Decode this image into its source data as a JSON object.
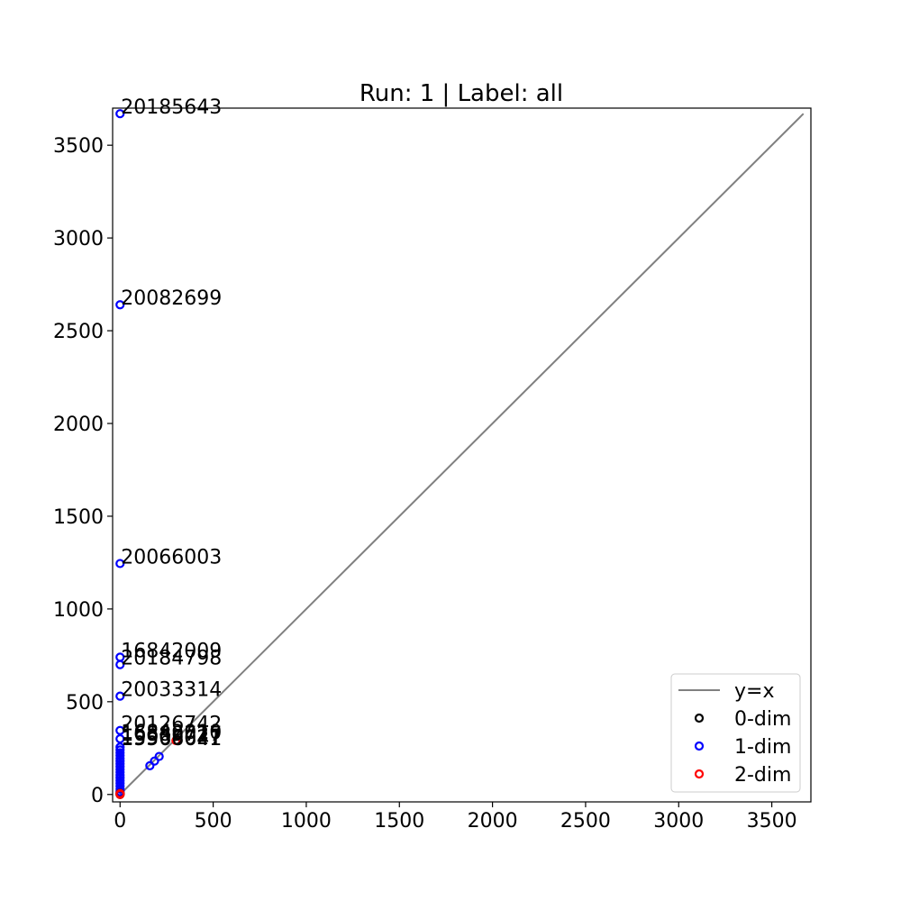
{
  "chart_data": {
    "type": "scatter",
    "title": "Run: 1 | Label: all",
    "xlabel": "",
    "ylabel": "",
    "xlim": [
      -40,
      3710
    ],
    "ylim": [
      -40,
      3700
    ],
    "xticks": [
      0,
      500,
      1000,
      1500,
      2000,
      2500,
      3000,
      3500
    ],
    "yticks": [
      0,
      500,
      1000,
      1500,
      2000,
      2500,
      3000,
      3500
    ],
    "grid": false,
    "legend": {
      "placement": "lower-right",
      "entries": [
        {
          "label": "y=x",
          "kind": "line",
          "color": "#808080"
        },
        {
          "label": "0-dim",
          "kind": "marker",
          "color": "#000000"
        },
        {
          "label": "1-dim",
          "kind": "marker",
          "color": "#0000ff"
        },
        {
          "label": "2-dim",
          "kind": "marker",
          "color": "#ff0000"
        }
      ]
    },
    "diagonal": {
      "label": "y=x",
      "color": "#808080",
      "from": 0,
      "to": 3670
    },
    "series": [
      {
        "name": "0-dim",
        "color": "#000000",
        "points": [
          [
            0,
            0
          ],
          [
            0,
            3
          ],
          [
            0,
            6
          ]
        ]
      },
      {
        "name": "1-dim",
        "color": "#0000ff",
        "points": [
          [
            0,
            3670
          ],
          [
            0,
            2640
          ],
          [
            0,
            1245
          ],
          [
            0,
            740
          ],
          [
            0,
            700
          ],
          [
            0,
            530
          ],
          [
            0,
            345
          ],
          [
            0,
            300
          ],
          [
            0,
            255
          ],
          [
            0,
            240
          ],
          [
            0,
            225
          ],
          [
            0,
            210
          ],
          [
            0,
            195
          ],
          [
            0,
            180
          ],
          [
            0,
            165
          ],
          [
            0,
            150
          ],
          [
            0,
            135
          ],
          [
            0,
            120
          ],
          [
            0,
            105
          ],
          [
            0,
            90
          ],
          [
            0,
            75
          ],
          [
            0,
            60
          ],
          [
            0,
            45
          ],
          [
            0,
            30
          ],
          [
            0,
            15
          ],
          [
            160,
            155
          ],
          [
            185,
            180
          ],
          [
            210,
            205
          ]
        ]
      },
      {
        "name": "2-dim",
        "color": "#ff0000",
        "points": [
          [
            0,
            0
          ],
          [
            0,
            5
          ],
          [
            300,
            290
          ]
        ]
      }
    ],
    "annotations": [
      {
        "text": "20185643",
        "x": 0,
        "y": 3670
      },
      {
        "text": "20082699",
        "x": 0,
        "y": 2640
      },
      {
        "text": "20066003",
        "x": 0,
        "y": 1245
      },
      {
        "text": "16842009",
        "x": 0,
        "y": 740
      },
      {
        "text": "20184798",
        "x": 0,
        "y": 700
      },
      {
        "text": "20033314",
        "x": 0,
        "y": 530
      },
      {
        "text": "20126742",
        "x": 0,
        "y": 345
      },
      {
        "text": "16842010",
        "x": 0,
        "y": 300
      },
      {
        "text": "16889727",
        "x": 0,
        "y": 290
      },
      {
        "text": "19909027",
        "x": 0,
        "y": 270
      },
      {
        "text": "15566641",
        "x": 0,
        "y": 265
      }
    ]
  }
}
